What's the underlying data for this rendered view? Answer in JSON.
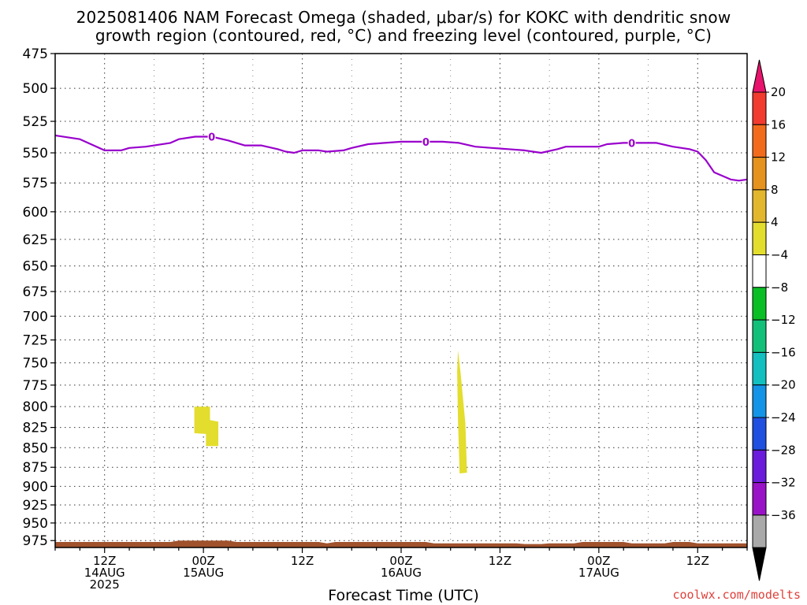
{
  "title_line1": "2025081406 NAM Forecast Omega (shaded, μbar/s) for KOKC with dendritic snow",
  "title_line2": "growth region (contoured, red, °C) and freezing level (contoured, purple, °C)",
  "xaxis_title": "Forecast Time (UTC)",
  "credit": "coolwx.com/modelts",
  "chart_data": {
    "type": "area",
    "y_axis": {
      "label": "",
      "range": [
        475,
        985
      ],
      "scale": "log-pressure",
      "inverted": true,
      "ticks": [
        475,
        500,
        525,
        550,
        575,
        600,
        625,
        650,
        675,
        700,
        725,
        750,
        775,
        800,
        825,
        850,
        875,
        900,
        925,
        950,
        975
      ]
    },
    "x_axis": {
      "label": "Forecast Time (UTC)",
      "range_hours": [
        0,
        84
      ],
      "ticks": [
        {
          "hour": 6,
          "lines": [
            "12Z",
            "14AUG",
            "2025"
          ]
        },
        {
          "hour": 18,
          "lines": [
            "00Z",
            "15AUG"
          ]
        },
        {
          "hour": 30,
          "lines": [
            "12Z"
          ]
        },
        {
          "hour": 42,
          "lines": [
            "00Z",
            "16AUG"
          ]
        },
        {
          "hour": 54,
          "lines": [
            "12Z"
          ]
        },
        {
          "hour": 66,
          "lines": [
            "00Z",
            "17AUG"
          ]
        },
        {
          "hour": 78,
          "lines": [
            "12Z"
          ]
        }
      ]
    },
    "grid": true,
    "freezing_level": {
      "name": "0",
      "color": "#9900cc",
      "label": "0",
      "points": [
        [
          0,
          536
        ],
        [
          3,
          539
        ],
        [
          6,
          548
        ],
        [
          8,
          548
        ],
        [
          9,
          546
        ],
        [
          11,
          545
        ],
        [
          14,
          542
        ],
        [
          15,
          539
        ],
        [
          17,
          537
        ],
        [
          19,
          537
        ],
        [
          21,
          540
        ],
        [
          23,
          544
        ],
        [
          25,
          544
        ],
        [
          27,
          547
        ],
        [
          28,
          549
        ],
        [
          29,
          550
        ],
        [
          30,
          548
        ],
        [
          32,
          548
        ],
        [
          33,
          549
        ],
        [
          35,
          548
        ],
        [
          36,
          546
        ],
        [
          38,
          543
        ],
        [
          40,
          542
        ],
        [
          42,
          541
        ],
        [
          44,
          541
        ],
        [
          46,
          541
        ],
        [
          47,
          541
        ],
        [
          49,
          542
        ],
        [
          51,
          545
        ],
        [
          53,
          546
        ],
        [
          55,
          547
        ],
        [
          57,
          548
        ],
        [
          58,
          549
        ],
        [
          59,
          550
        ],
        [
          61,
          547
        ],
        [
          62,
          545
        ],
        [
          64,
          545
        ],
        [
          66,
          545
        ],
        [
          67,
          543
        ],
        [
          69,
          542
        ],
        [
          71,
          542
        ],
        [
          73,
          542
        ],
        [
          75,
          545
        ],
        [
          77,
          547
        ],
        [
          78,
          549
        ],
        [
          79,
          556
        ],
        [
          80,
          566
        ],
        [
          82,
          572
        ],
        [
          83,
          573
        ],
        [
          84,
          572
        ]
      ],
      "label_hours": [
        19,
        45,
        70
      ]
    },
    "omega_shaded": [
      {
        "level": "4 to 8",
        "color": "#e3dd2e",
        "polygon": [
          [
            16.9,
            800
          ],
          [
            18.8,
            800
          ],
          [
            18.8,
            816
          ],
          [
            19.8,
            818
          ],
          [
            19.8,
            848
          ],
          [
            18.3,
            848
          ],
          [
            18.3,
            833
          ],
          [
            16.9,
            832
          ]
        ]
      },
      {
        "level": "4 to 8",
        "color": "#e3dd2e",
        "polygon": [
          [
            48.9,
            736
          ],
          [
            49.2,
            760
          ],
          [
            49.8,
            820
          ],
          [
            50.0,
            882
          ],
          [
            49.1,
            883
          ],
          [
            48.9,
            815
          ],
          [
            48.8,
            760
          ]
        ]
      }
    ],
    "ground": {
      "color": "#a0522d",
      "top_pressure": [
        [
          0,
          977
        ],
        [
          14,
          977
        ],
        [
          15,
          975
        ],
        [
          21,
          975
        ],
        [
          22,
          977
        ],
        [
          32,
          977
        ],
        [
          33,
          979
        ],
        [
          34,
          977
        ],
        [
          45,
          977
        ],
        [
          46,
          979
        ],
        [
          56,
          979
        ],
        [
          57,
          980
        ],
        [
          59,
          980
        ],
        [
          60,
          979
        ],
        [
          63,
          979
        ],
        [
          64,
          977
        ],
        [
          69,
          977
        ],
        [
          70,
          979
        ],
        [
          74,
          979
        ],
        [
          75,
          977
        ],
        [
          77,
          977
        ],
        [
          78,
          979
        ],
        [
          84,
          979
        ]
      ]
    },
    "colorbar": {
      "units": "μbar/s",
      "labels": [
        "20",
        "16",
        "12",
        "8",
        "4",
        "−4",
        "−8",
        "−12",
        "−16",
        "−20",
        "−24",
        "−28",
        "−32",
        "−36"
      ],
      "colors": [
        "#e8136c",
        "#f23a2e",
        "#f26b1d",
        "#e6921f",
        "#e3b72d",
        "#e3dd2e",
        "#ffffff",
        "#0abf26",
        "#13c07a",
        "#13bfbf",
        "#1494e6",
        "#2050e0",
        "#6a1bdb",
        "#9a12c8",
        "#a9a9a9",
        "#000000"
      ]
    }
  }
}
